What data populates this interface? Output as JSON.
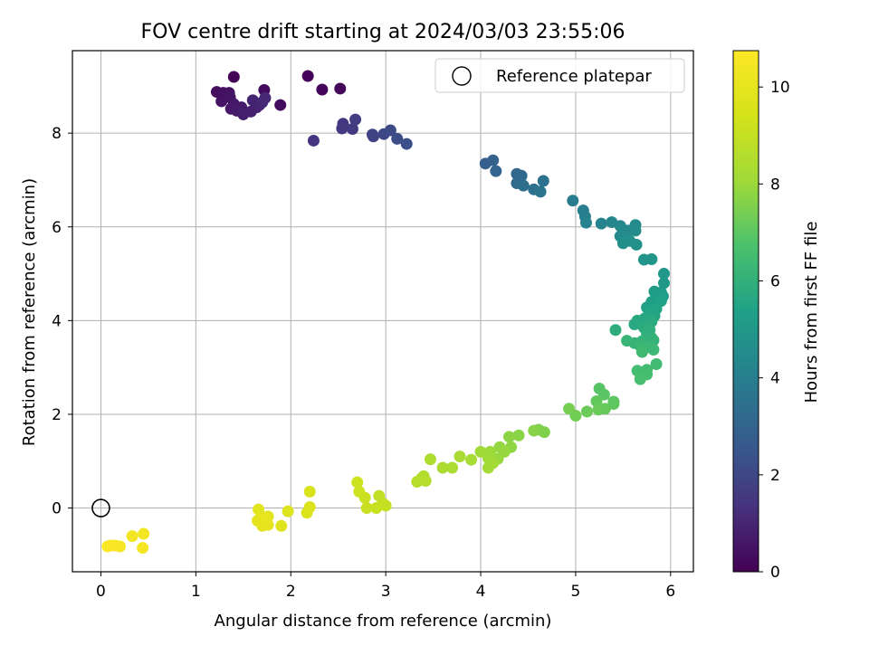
{
  "chart_data": {
    "type": "scatter",
    "title": "FOV centre drift starting at 2024/03/03 23:55:06",
    "xlabel": "Angular distance from reference (arcmin)",
    "ylabel": "Rotation from reference (arcmin)",
    "xlim": [
      -0.3,
      6.24
    ],
    "ylim": [
      -1.36,
      9.76
    ],
    "xticks": [
      0,
      1,
      2,
      3,
      4,
      5,
      6
    ],
    "yticks": [
      0,
      2,
      4,
      6,
      8
    ],
    "grid": true,
    "colormap": "viridis",
    "colorbar": {
      "label": "Hours from first FF file",
      "range": [
        0,
        10.75
      ],
      "ticks": [
        0,
        2,
        4,
        6,
        8,
        10
      ]
    },
    "legend": {
      "position": "top-right",
      "entries": [
        {
          "label": "Reference platepar",
          "marker": "open-circle"
        }
      ]
    },
    "reference_point": {
      "x": 0,
      "y": 0
    },
    "series": [
      {
        "name": "",
        "points": [
          [
            2.18,
            9.22,
            0.05
          ],
          [
            1.4,
            9.2,
            0.1
          ],
          [
            2.33,
            8.93,
            0.15
          ],
          [
            2.52,
            8.95,
            0.2
          ],
          [
            1.72,
            8.92,
            0.25
          ],
          [
            1.89,
            8.6,
            0.3
          ],
          [
            1.22,
            8.88,
            0.35
          ],
          [
            1.29,
            8.86,
            0.4
          ],
          [
            1.35,
            8.86,
            0.45
          ],
          [
            1.27,
            8.68,
            0.5
          ],
          [
            1.36,
            8.76,
            0.55
          ],
          [
            1.4,
            8.62,
            0.6
          ],
          [
            1.37,
            8.52,
            0.65
          ],
          [
            1.43,
            8.48,
            0.7
          ],
          [
            1.48,
            8.55,
            0.75
          ],
          [
            1.5,
            8.4,
            0.8
          ],
          [
            1.58,
            8.46,
            0.85
          ],
          [
            1.64,
            8.55,
            0.9
          ],
          [
            1.6,
            8.7,
            0.95
          ],
          [
            1.67,
            8.6,
            1.0
          ],
          [
            1.7,
            8.66,
            1.05
          ],
          [
            1.73,
            8.75,
            1.1
          ],
          [
            2.24,
            7.84,
            1.4
          ],
          [
            2.55,
            8.2,
            1.5
          ],
          [
            2.54,
            8.1,
            1.55
          ],
          [
            2.65,
            8.09,
            1.6
          ],
          [
            2.68,
            8.29,
            1.7
          ],
          [
            2.87,
            7.93,
            1.85
          ],
          [
            2.86,
            7.97,
            1.9
          ],
          [
            2.98,
            7.98,
            2.0
          ],
          [
            3.05,
            8.06,
            2.1
          ],
          [
            3.12,
            7.88,
            2.2
          ],
          [
            3.22,
            7.77,
            2.3
          ],
          [
            4.05,
            7.35,
            2.8
          ],
          [
            4.13,
            7.42,
            2.9
          ],
          [
            4.16,
            7.19,
            3.0
          ],
          [
            4.38,
            7.13,
            3.1
          ],
          [
            4.43,
            7.09,
            3.15
          ],
          [
            4.38,
            6.93,
            3.25
          ],
          [
            4.45,
            6.88,
            3.35
          ],
          [
            4.56,
            6.8,
            3.45
          ],
          [
            4.66,
            6.98,
            3.55
          ],
          [
            4.63,
            6.75,
            3.6
          ],
          [
            4.97,
            6.56,
            3.9
          ],
          [
            5.08,
            6.35,
            4.0
          ],
          [
            5.1,
            6.22,
            4.05
          ],
          [
            5.11,
            6.09,
            4.1
          ],
          [
            5.27,
            6.07,
            4.2
          ],
          [
            5.38,
            6.1,
            4.3
          ],
          [
            5.47,
            6.02,
            4.4
          ],
          [
            5.55,
            5.92,
            4.45
          ],
          [
            5.63,
            6.04,
            4.5
          ],
          [
            5.63,
            5.92,
            4.55
          ],
          [
            5.47,
            5.8,
            4.6
          ],
          [
            5.5,
            5.65,
            4.65
          ],
          [
            5.57,
            5.7,
            4.7
          ],
          [
            5.64,
            5.62,
            4.75
          ],
          [
            5.72,
            5.3,
            4.85
          ],
          [
            5.8,
            5.31,
            4.9
          ],
          [
            5.93,
            5.0,
            5.0
          ],
          [
            5.93,
            4.8,
            5.05
          ],
          [
            5.9,
            4.6,
            5.1
          ],
          [
            5.83,
            4.62,
            5.15
          ],
          [
            5.85,
            4.5,
            5.2
          ],
          [
            5.92,
            4.52,
            5.25
          ],
          [
            5.8,
            4.4,
            5.3
          ],
          [
            5.75,
            4.28,
            5.35
          ],
          [
            5.9,
            4.42,
            5.4
          ],
          [
            5.85,
            4.25,
            5.45
          ],
          [
            5.78,
            4.18,
            5.5
          ],
          [
            5.83,
            4.1,
            5.55
          ],
          [
            5.73,
            4.05,
            5.6
          ],
          [
            5.65,
            4.0,
            5.65
          ],
          [
            5.62,
            3.92,
            5.7
          ],
          [
            5.8,
            3.98,
            5.75
          ],
          [
            5.72,
            3.85,
            5.8
          ],
          [
            5.42,
            3.8,
            5.85
          ],
          [
            5.78,
            3.8,
            5.9
          ],
          [
            5.75,
            3.72,
            5.95
          ],
          [
            5.8,
            3.63,
            6.0
          ],
          [
            5.7,
            3.56,
            6.05
          ],
          [
            5.82,
            3.58,
            6.1
          ],
          [
            5.62,
            3.52,
            6.15
          ],
          [
            5.54,
            3.57,
            6.2
          ],
          [
            5.68,
            3.46,
            6.25
          ],
          [
            5.75,
            3.43,
            6.3
          ],
          [
            5.82,
            3.38,
            6.35
          ],
          [
            5.7,
            3.33,
            6.4
          ],
          [
            5.85,
            3.07,
            6.45
          ],
          [
            5.75,
            2.95,
            6.5
          ],
          [
            5.65,
            2.93,
            6.55
          ],
          [
            5.75,
            2.85,
            6.6
          ],
          [
            5.68,
            2.75,
            6.65
          ],
          [
            5.25,
            2.55,
            6.9
          ],
          [
            5.3,
            2.42,
            6.95
          ],
          [
            5.4,
            2.27,
            7.0
          ],
          [
            5.4,
            2.22,
            7.05
          ],
          [
            5.22,
            2.28,
            7.1
          ],
          [
            5.31,
            2.12,
            7.15
          ],
          [
            5.24,
            2.1,
            7.2
          ],
          [
            5.12,
            2.06,
            7.25
          ],
          [
            5.0,
            1.97,
            7.35
          ],
          [
            4.93,
            2.12,
            7.4
          ],
          [
            4.67,
            1.62,
            7.55
          ],
          [
            4.61,
            1.67,
            7.6
          ],
          [
            4.56,
            1.65,
            7.65
          ],
          [
            4.4,
            1.55,
            7.7
          ],
          [
            4.3,
            1.52,
            7.75
          ],
          [
            4.32,
            1.3,
            7.8
          ],
          [
            4.2,
            1.3,
            7.85
          ],
          [
            4.25,
            1.2,
            7.9
          ],
          [
            4.18,
            1.05,
            7.95
          ],
          [
            4.1,
            1.2,
            8.0
          ],
          [
            4.08,
            1.06,
            8.05
          ],
          [
            4.0,
            1.2,
            8.1
          ],
          [
            4.13,
            0.96,
            8.15
          ],
          [
            4.08,
            0.86,
            8.2
          ],
          [
            3.9,
            1.03,
            8.25
          ],
          [
            3.78,
            1.1,
            8.3
          ],
          [
            3.7,
            0.86,
            8.35
          ],
          [
            3.6,
            0.86,
            8.4
          ],
          [
            3.47,
            1.04,
            8.45
          ],
          [
            3.4,
            0.68,
            8.5
          ],
          [
            3.38,
            0.64,
            8.55
          ],
          [
            3.42,
            0.58,
            8.6
          ],
          [
            3.33,
            0.56,
            8.65
          ],
          [
            2.93,
            0.26,
            8.9
          ],
          [
            2.97,
            0.1,
            8.95
          ],
          [
            3.0,
            0.05,
            9.0
          ],
          [
            2.9,
            0.0,
            9.05
          ],
          [
            2.8,
            0.0,
            9.1
          ],
          [
            2.78,
            0.22,
            9.15
          ],
          [
            2.72,
            0.35,
            9.2
          ],
          [
            2.7,
            0.55,
            9.25
          ],
          [
            2.2,
            0.35,
            9.55
          ],
          [
            2.2,
            0.02,
            9.6
          ],
          [
            2.17,
            -0.1,
            9.65
          ],
          [
            1.97,
            -0.07,
            9.7
          ],
          [
            1.9,
            -0.38,
            9.75
          ],
          [
            1.76,
            -0.18,
            9.8
          ],
          [
            1.66,
            -0.03,
            9.85
          ],
          [
            1.65,
            -0.27,
            9.9
          ],
          [
            1.7,
            -0.38,
            9.95
          ],
          [
            1.76,
            -0.36,
            10.0
          ],
          [
            1.73,
            -0.2,
            10.05
          ],
          [
            0.45,
            -0.55,
            10.4
          ],
          [
            0.33,
            -0.6,
            10.45
          ],
          [
            0.44,
            -0.85,
            10.5
          ],
          [
            0.2,
            -0.82,
            10.55
          ],
          [
            0.15,
            -0.8,
            10.6
          ],
          [
            0.1,
            -0.8,
            10.65
          ],
          [
            0.07,
            -0.82,
            10.7
          ]
        ]
      }
    ]
  }
}
